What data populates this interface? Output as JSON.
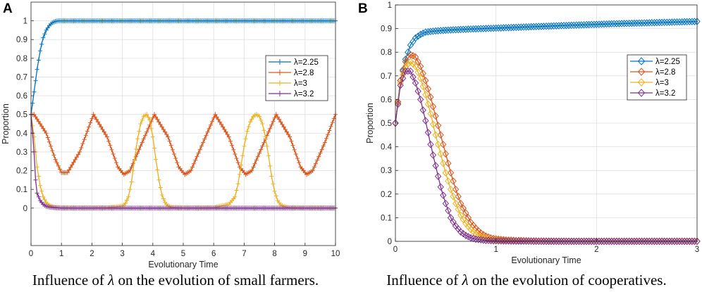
{
  "chart_data": [
    {
      "panel_label": "A",
      "type": "line",
      "title": "",
      "xlabel": "Evolutionary Time",
      "ylabel": "Proportion",
      "xlim": [
        0,
        10
      ],
      "ylim": [
        -0.2,
        1.1
      ],
      "xticks": [
        0,
        1,
        2,
        3,
        4,
        5,
        6,
        7,
        8,
        9,
        10
      ],
      "yticks": [
        0,
        0.1,
        0.2,
        0.3,
        0.4,
        0.5,
        0.6,
        0.7,
        0.8,
        0.9,
        1
      ],
      "grid": true,
      "legend_position": "right",
      "marker": "plus",
      "series": [
        {
          "name": "λ=2.25",
          "color": "#0072BD",
          "x": [
            0,
            0.1,
            0.2,
            0.3,
            0.4,
            0.5,
            0.6,
            0.7,
            0.8,
            0.9,
            1.0,
            2,
            3,
            4,
            5,
            6,
            7,
            8,
            9,
            10
          ],
          "y": [
            0.5,
            0.62,
            0.74,
            0.84,
            0.91,
            0.95,
            0.975,
            0.99,
            0.997,
            1.0,
            1.0,
            1.0,
            1.0,
            1.0,
            1.0,
            1.0,
            1.0,
            1.0,
            1.0,
            1.0
          ]
        },
        {
          "name": "λ=2.8",
          "color": "#D95319",
          "x": [
            0,
            0.1,
            0.5,
            0.8,
            1.0,
            1.2,
            1.6,
            2.05,
            2.5,
            2.85,
            3.05,
            3.25,
            3.65,
            4.05,
            4.5,
            4.85,
            5.05,
            5.25,
            5.65,
            6.05,
            6.5,
            6.85,
            7.05,
            7.25,
            7.65,
            8.05,
            8.5,
            8.85,
            9.05,
            9.25,
            9.65,
            10.0
          ],
          "y": [
            0.5,
            0.5,
            0.4,
            0.26,
            0.19,
            0.19,
            0.3,
            0.5,
            0.38,
            0.22,
            0.18,
            0.2,
            0.35,
            0.5,
            0.38,
            0.22,
            0.18,
            0.2,
            0.35,
            0.5,
            0.38,
            0.22,
            0.18,
            0.2,
            0.35,
            0.5,
            0.38,
            0.22,
            0.18,
            0.2,
            0.35,
            0.5
          ]
        },
        {
          "name": "λ=3",
          "color": "#EDB120",
          "x": [
            0,
            0.1,
            0.2,
            0.3,
            0.4,
            0.5,
            0.6,
            0.7,
            0.8,
            1.0,
            1.5,
            2.0,
            2.5,
            3.0,
            3.1,
            3.2,
            3.3,
            3.4,
            3.5,
            3.6,
            3.7,
            3.8,
            3.9,
            4.0,
            4.1,
            4.2,
            4.3,
            4.4,
            4.5,
            4.6,
            5.0,
            5.5,
            6.0,
            6.5,
            6.7,
            6.8,
            6.9,
            7.0,
            7.1,
            7.2,
            7.3,
            7.4,
            7.5,
            7.6,
            7.7,
            7.8,
            7.9,
            8.0,
            8.1,
            8.2,
            8.3,
            8.5,
            9.0,
            10.0
          ],
          "y": [
            0.5,
            0.38,
            0.22,
            0.12,
            0.06,
            0.03,
            0.015,
            0.008,
            0.004,
            0.002,
            0.001,
            0.001,
            0.002,
            0.01,
            0.025,
            0.06,
            0.14,
            0.26,
            0.37,
            0.45,
            0.49,
            0.5,
            0.47,
            0.38,
            0.26,
            0.15,
            0.07,
            0.03,
            0.012,
            0.005,
            0.001,
            0.001,
            0.002,
            0.02,
            0.06,
            0.13,
            0.23,
            0.33,
            0.41,
            0.46,
            0.49,
            0.5,
            0.49,
            0.45,
            0.38,
            0.28,
            0.17,
            0.09,
            0.04,
            0.018,
            0.008,
            0.002,
            0.001,
            0.001
          ]
        },
        {
          "name": "λ=3.2",
          "color": "#7E2F8E",
          "x": [
            0,
            0.1,
            0.15,
            0.2,
            0.3,
            0.4,
            0.5,
            0.6,
            0.8,
            1.0,
            2,
            3,
            4,
            5,
            6,
            7,
            8,
            9,
            10
          ],
          "y": [
            0.5,
            0.3,
            0.15,
            0.08,
            0.04,
            0.02,
            0.01,
            0.005,
            0.002,
            0.0,
            0.0,
            0.0,
            0.0,
            0.0,
            0.0,
            0.0,
            0.0,
            0.0,
            0.0
          ]
        }
      ]
    },
    {
      "panel_label": "B",
      "type": "line",
      "title": "",
      "xlabel": "Evolutionary Time",
      "ylabel": "Proportion",
      "xlim": [
        0,
        3
      ],
      "ylim": [
        0,
        1
      ],
      "xticks": [
        0,
        1,
        2,
        3
      ],
      "yticks": [
        0,
        0.1,
        0.2,
        0.3,
        0.4,
        0.5,
        0.6,
        0.7,
        0.8,
        0.9,
        1
      ],
      "grid": true,
      "legend_position": "right",
      "marker": "diamond",
      "series": [
        {
          "name": "λ=2.25",
          "color": "#0072BD",
          "x": [
            0,
            0.05,
            0.1,
            0.15,
            0.2,
            0.25,
            0.3,
            0.4,
            0.5,
            0.75,
            1.0,
            1.5,
            2.0,
            2.5,
            3.0
          ],
          "y": [
            0.5,
            0.68,
            0.77,
            0.83,
            0.86,
            0.875,
            0.885,
            0.89,
            0.893,
            0.898,
            0.902,
            0.91,
            0.918,
            0.924,
            0.93
          ]
        },
        {
          "name": "λ=2.8",
          "color": "#D95319",
          "x": [
            0,
            0.05,
            0.1,
            0.15,
            0.2,
            0.25,
            0.3,
            0.35,
            0.4,
            0.45,
            0.5,
            0.55,
            0.6,
            0.65,
            0.7,
            0.75,
            0.8,
            0.85,
            0.9,
            0.95,
            1.0,
            1.1,
            1.2,
            1.4,
            1.7,
            2.0,
            2.5,
            3.0
          ],
          "y": [
            0.5,
            0.68,
            0.76,
            0.79,
            0.78,
            0.74,
            0.68,
            0.61,
            0.53,
            0.45,
            0.37,
            0.29,
            0.22,
            0.16,
            0.12,
            0.08,
            0.055,
            0.035,
            0.022,
            0.014,
            0.01,
            0.006,
            0.004,
            0.002,
            0.001,
            0.001,
            0.001,
            0.001
          ]
        },
        {
          "name": "λ=3",
          "color": "#EDB120",
          "x": [
            0,
            0.05,
            0.1,
            0.15,
            0.2,
            0.25,
            0.3,
            0.35,
            0.4,
            0.45,
            0.5,
            0.55,
            0.6,
            0.65,
            0.7,
            0.75,
            0.8,
            0.85,
            0.9,
            1.0,
            1.2,
            1.5,
            2.0,
            2.5,
            3.0
          ],
          "y": [
            0.5,
            0.67,
            0.74,
            0.76,
            0.74,
            0.69,
            0.62,
            0.54,
            0.45,
            0.37,
            0.29,
            0.22,
            0.16,
            0.11,
            0.075,
            0.05,
            0.032,
            0.02,
            0.012,
            0.005,
            0.002,
            0.001,
            0.001,
            0.001,
            0.001
          ]
        },
        {
          "name": "λ=3.2",
          "color": "#7E2F8E",
          "x": [
            0,
            0.05,
            0.1,
            0.15,
            0.2,
            0.25,
            0.3,
            0.35,
            0.4,
            0.45,
            0.5,
            0.55,
            0.6,
            0.65,
            0.7,
            0.75,
            0.8,
            0.9,
            1.0,
            1.2,
            1.5,
            2.0,
            2.5,
            3.0
          ],
          "y": [
            0.5,
            0.66,
            0.72,
            0.72,
            0.67,
            0.6,
            0.51,
            0.41,
            0.32,
            0.23,
            0.16,
            0.1,
            0.065,
            0.04,
            0.025,
            0.015,
            0.009,
            0.004,
            0.002,
            0.001,
            0.0,
            0.0,
            0.0,
            0.0
          ]
        }
      ]
    }
  ],
  "captions": [
    {
      "prefix": "Influence of ",
      "symbol": "λ",
      "suffix": " on the evolution of small farmers."
    },
    {
      "prefix": "Influence of ",
      "symbol": "λ",
      "suffix": " on the evolution of cooperatives."
    }
  ]
}
